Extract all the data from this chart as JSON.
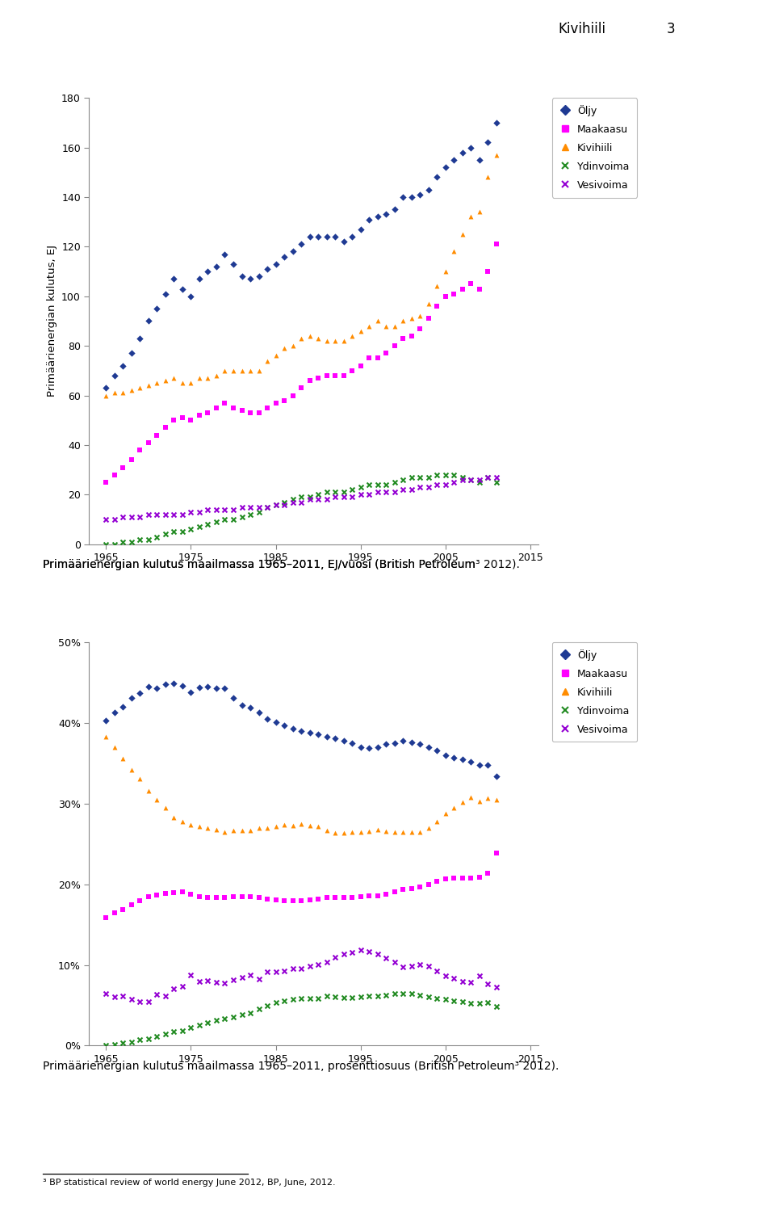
{
  "years": [
    1965,
    1966,
    1967,
    1968,
    1969,
    1970,
    1971,
    1972,
    1973,
    1974,
    1975,
    1976,
    1977,
    1978,
    1979,
    1980,
    1981,
    1982,
    1983,
    1984,
    1985,
    1986,
    1987,
    1988,
    1989,
    1990,
    1991,
    1992,
    1993,
    1994,
    1995,
    1996,
    1997,
    1998,
    1999,
    2000,
    2001,
    2002,
    2003,
    2004,
    2005,
    2006,
    2007,
    2008,
    2009,
    2010,
    2011
  ],
  "oil_ej": [
    63,
    68,
    72,
    77,
    83,
    90,
    95,
    101,
    107,
    103,
    100,
    107,
    110,
    112,
    117,
    113,
    108,
    107,
    108,
    111,
    113,
    116,
    118,
    121,
    124,
    124,
    124,
    124,
    122,
    124,
    127,
    131,
    132,
    133,
    135,
    140,
    140,
    141,
    143,
    148,
    152,
    155,
    158,
    160,
    155,
    162,
    170
  ],
  "gas_ej": [
    25,
    28,
    31,
    34,
    38,
    41,
    44,
    47,
    50,
    51,
    50,
    52,
    53,
    55,
    57,
    55,
    54,
    53,
    53,
    55,
    57,
    58,
    60,
    63,
    66,
    67,
    68,
    68,
    68,
    70,
    72,
    75,
    75,
    77,
    80,
    83,
    84,
    87,
    91,
    96,
    100,
    101,
    103,
    105,
    103,
    110,
    121
  ],
  "coal_ej": [
    60,
    61,
    61,
    62,
    63,
    64,
    65,
    66,
    67,
    65,
    65,
    67,
    67,
    68,
    70,
    70,
    70,
    70,
    70,
    74,
    76,
    79,
    80,
    83,
    84,
    83,
    82,
    82,
    82,
    84,
    86,
    88,
    90,
    88,
    88,
    90,
    91,
    92,
    97,
    104,
    110,
    118,
    125,
    132,
    134,
    148,
    157
  ],
  "nuclear_ej": [
    0,
    0,
    1,
    1,
    2,
    2,
    3,
    4,
    5,
    5,
    6,
    7,
    8,
    9,
    10,
    10,
    11,
    12,
    13,
    15,
    16,
    17,
    18,
    19,
    19,
    20,
    21,
    21,
    21,
    22,
    23,
    24,
    24,
    24,
    25,
    26,
    27,
    27,
    27,
    28,
    28,
    28,
    27,
    26,
    25,
    27,
    25
  ],
  "hydro_ej": [
    10,
    10,
    11,
    11,
    11,
    12,
    12,
    12,
    12,
    12,
    13,
    13,
    14,
    14,
    14,
    14,
    15,
    15,
    15,
    15,
    16,
    16,
    17,
    17,
    18,
    18,
    18,
    19,
    19,
    19,
    20,
    20,
    21,
    21,
    21,
    22,
    22,
    23,
    23,
    24,
    24,
    25,
    26,
    26,
    26,
    27,
    27
  ],
  "oil_pct": [
    40.3,
    41.3,
    42.0,
    43.1,
    43.7,
    44.5,
    44.3,
    44.8,
    44.9,
    44.6,
    43.8,
    44.4,
    44.5,
    44.3,
    44.3,
    43.1,
    42.2,
    41.9,
    41.3,
    40.5,
    40.1,
    39.7,
    39.3,
    39.0,
    38.8,
    38.6,
    38.3,
    38.1,
    37.8,
    37.5,
    37.0,
    36.9,
    37.0,
    37.4,
    37.5,
    37.8,
    37.6,
    37.4,
    37.0,
    36.6,
    36.0,
    35.7,
    35.5,
    35.2,
    34.8,
    34.8,
    33.4
  ],
  "gas_pct": [
    15.9,
    16.5,
    16.9,
    17.5,
    18.0,
    18.5,
    18.7,
    18.9,
    19.0,
    19.1,
    18.8,
    18.5,
    18.4,
    18.4,
    18.4,
    18.5,
    18.5,
    18.5,
    18.4,
    18.2,
    18.1,
    18.0,
    18.0,
    18.0,
    18.1,
    18.2,
    18.4,
    18.4,
    18.4,
    18.4,
    18.5,
    18.6,
    18.6,
    18.8,
    19.1,
    19.4,
    19.5,
    19.7,
    20.0,
    20.4,
    20.7,
    20.8,
    20.8,
    20.8,
    20.9,
    21.4,
    23.9
  ],
  "coal_pct": [
    38.3,
    37.0,
    35.6,
    34.2,
    33.1,
    31.6,
    30.5,
    29.5,
    28.3,
    27.8,
    27.4,
    27.2,
    27.0,
    26.8,
    26.5,
    26.7,
    26.7,
    26.7,
    27.0,
    27.0,
    27.2,
    27.4,
    27.3,
    27.5,
    27.3,
    27.2,
    26.7,
    26.4,
    26.4,
    26.5,
    26.5,
    26.6,
    26.8,
    26.6,
    26.5,
    26.5,
    26.5,
    26.5,
    27.0,
    27.8,
    28.8,
    29.5,
    30.2,
    30.8,
    30.3,
    30.7,
    30.5
  ],
  "nuclear_pct": [
    0.0,
    0.1,
    0.3,
    0.4,
    0.7,
    0.8,
    1.1,
    1.4,
    1.7,
    1.8,
    2.2,
    2.5,
    2.8,
    3.1,
    3.3,
    3.5,
    3.8,
    4.1,
    4.6,
    5.0,
    5.4,
    5.6,
    5.8,
    5.9,
    5.9,
    5.9,
    6.2,
    6.1,
    6.0,
    6.0,
    6.1,
    6.2,
    6.2,
    6.3,
    6.5,
    6.5,
    6.5,
    6.3,
    6.1,
    5.9,
    5.8,
    5.6,
    5.5,
    5.3,
    5.3,
    5.4,
    4.9
  ],
  "hydro_pct": [
    6.5,
    6.1,
    6.2,
    5.8,
    5.5,
    5.5,
    6.4,
    6.2,
    7.1,
    7.4,
    8.8,
    8.0,
    8.1,
    7.9,
    7.8,
    8.2,
    8.5,
    8.8,
    8.3,
    9.2,
    9.2,
    9.3,
    9.6,
    9.6,
    9.9,
    10.1,
    10.4,
    11.0,
    11.4,
    11.6,
    11.9,
    11.7,
    11.4,
    10.9,
    10.4,
    9.8,
    9.9,
    10.1,
    9.9,
    9.3,
    8.7,
    8.4,
    8.0,
    7.9,
    8.7,
    7.7,
    7.3
  ],
  "legend_labels": [
    "Öljy",
    "Maakaasu",
    "Kivihiili",
    "Ydinvoima",
    "Vesivoima"
  ],
  "ylabel1": "Primäärienergian kulutus, EJ",
  "caption1": "Primäärienergian kulutus maailmassa 1965–2011, EJ/vuosi (British Petroleum",
  "caption2": "Primäärienergian kulutus maailmassa 1965–2011, prosenttiosuus (British Petroleum",
  "superscript": "3",
  "caption_end": " 2012).",
  "header_text": "Kivihiili",
  "header_num": "3",
  "footnote_line": "³ BP statistical review of world energy June 2012, BP, June, 2012.",
  "oil_color": "#1F3A93",
  "gas_color": "#FF00FF",
  "coal_color": "#FF8C00",
  "nuclear_color": "#228B22",
  "hydro_color": "#9400D3",
  "chart1_ylim": [
    0,
    180
  ],
  "chart1_yticks": [
    0,
    20,
    40,
    60,
    80,
    100,
    120,
    140,
    160,
    180
  ],
  "chart2_ylim": [
    0,
    50
  ],
  "chart2_yticks": [
    0,
    10,
    20,
    30,
    40,
    50
  ],
  "xticks": [
    1965,
    1975,
    1985,
    1995,
    2005,
    2015
  ],
  "xlim": [
    1963,
    2016
  ]
}
